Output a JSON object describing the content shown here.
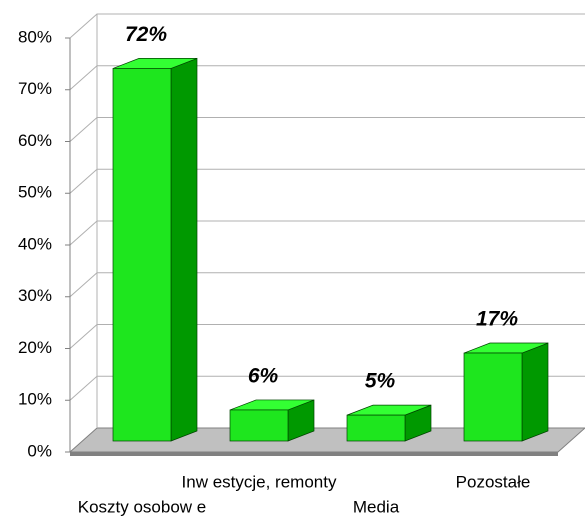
{
  "chart_data": {
    "type": "bar3d",
    "categories": [
      "Koszty osobow e",
      "Inw estycje, remonty",
      "Media",
      "Pozostałe"
    ],
    "values": [
      72,
      6,
      5,
      17
    ],
    "value_labels": [
      "72%",
      "6%",
      "5%",
      "17%"
    ],
    "color": "#1ee61e",
    "ylim": [
      0,
      80
    ],
    "yticks": [
      {
        "value": 0,
        "label": "0%"
      },
      {
        "value": 10,
        "label": "10%"
      },
      {
        "value": 20,
        "label": "20%"
      },
      {
        "value": 30,
        "label": "30%"
      },
      {
        "value": 40,
        "label": "40%"
      },
      {
        "value": 50,
        "label": "50%"
      },
      {
        "value": 60,
        "label": "60%"
      },
      {
        "value": 70,
        "label": "70%"
      },
      {
        "value": 80,
        "label": "80%"
      }
    ],
    "grid": true
  }
}
